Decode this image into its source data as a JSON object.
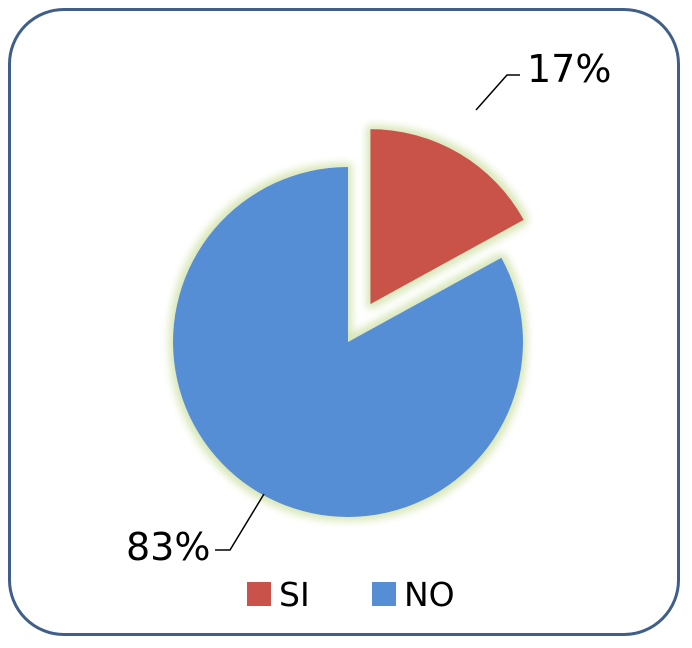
{
  "chart_data": {
    "type": "pie",
    "exploded": "SI",
    "legend_position": "bottom",
    "slices": [
      {
        "name": "SI",
        "value": 17,
        "label": "17%",
        "color": "#c9534a"
      },
      {
        "name": "NO",
        "value": 83,
        "label": "83%",
        "color": "#558ed5"
      }
    ]
  },
  "glow_color": "#d8e7b8",
  "border_color": "#3f5f8a"
}
